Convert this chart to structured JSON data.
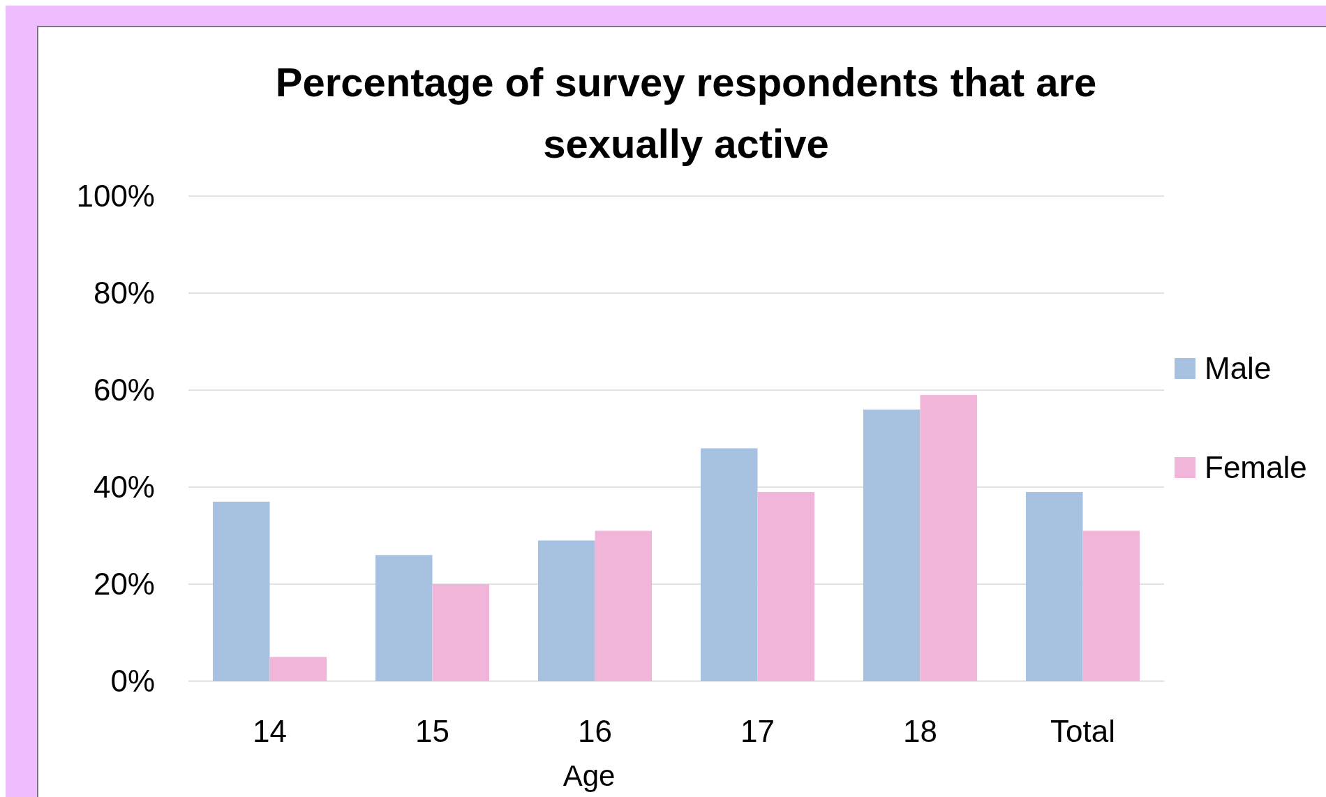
{
  "chart_data": {
    "type": "bar",
    "title": "Percentage of survey respondents that are sexually active",
    "xlabel": "Age",
    "categories": [
      "14",
      "15",
      "16",
      "17",
      "18",
      "Total"
    ],
    "series": [
      {
        "name": "Male",
        "color": "#a7c1e0",
        "values": [
          37,
          26,
          29,
          48,
          56,
          39
        ]
      },
      {
        "name": "Female",
        "color": "#f2b5da",
        "values": [
          5,
          20,
          31,
          39,
          59,
          31
        ]
      }
    ],
    "ylim": [
      0,
      100
    ],
    "yticks": [
      {
        "value": 0,
        "label": "0%"
      },
      {
        "value": 20,
        "label": "20%"
      },
      {
        "value": 40,
        "label": "40%"
      },
      {
        "value": 60,
        "label": "60%"
      },
      {
        "value": 80,
        "label": "80%"
      },
      {
        "value": 100,
        "label": "100%"
      }
    ],
    "grid": "y",
    "legend": "right"
  }
}
